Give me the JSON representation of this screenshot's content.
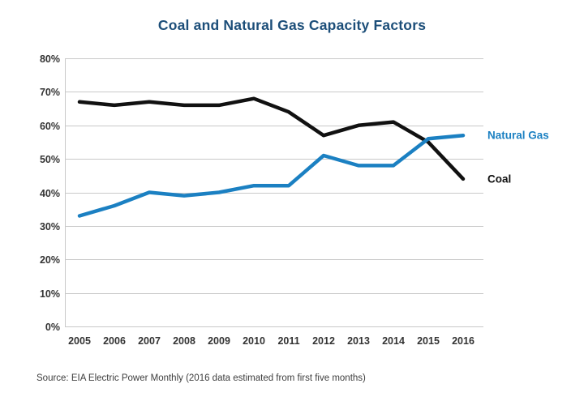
{
  "page": {
    "title": "Coal and Natural Gas Capacity Factors",
    "source_note": "Source: EIA Electric Power Monthly (2016 data estimated from first five months)"
  },
  "chart_data": {
    "type": "line",
    "title": "Coal and Natural Gas Capacity Factors",
    "categories": [
      "2005",
      "2006",
      "2007",
      "2008",
      "2009",
      "2010",
      "2011",
      "2012",
      "2013",
      "2014",
      "2015",
      "2016"
    ],
    "series": [
      {
        "name": "Coal",
        "color": "#111111",
        "values": [
          67,
          66,
          67,
          66,
          66,
          68,
          64,
          57,
          60,
          61,
          55,
          44
        ]
      },
      {
        "name": "Natural Gas",
        "color": "#1b80c2",
        "values": [
          33,
          36,
          40,
          39,
          40,
          42,
          42,
          51,
          48,
          48,
          56,
          57
        ]
      }
    ],
    "xlabel": "",
    "ylabel": "",
    "ylim": [
      0,
      80
    ],
    "y_tick_step": 10,
    "y_tick_labels": [
      "0%",
      "10%",
      "20%",
      "30%",
      "40%",
      "50%",
      "60%",
      "70%",
      "80%"
    ],
    "grid": true,
    "legend_position": "right-of-line-ends",
    "title_color": "#1c4e79",
    "grid_color": "#c9c9c9",
    "axis_color": "#c9c9c9",
    "tick_color": "#333333",
    "source": "Source: EIA Electric Power Monthly (2016 data estimated from first five months)"
  }
}
